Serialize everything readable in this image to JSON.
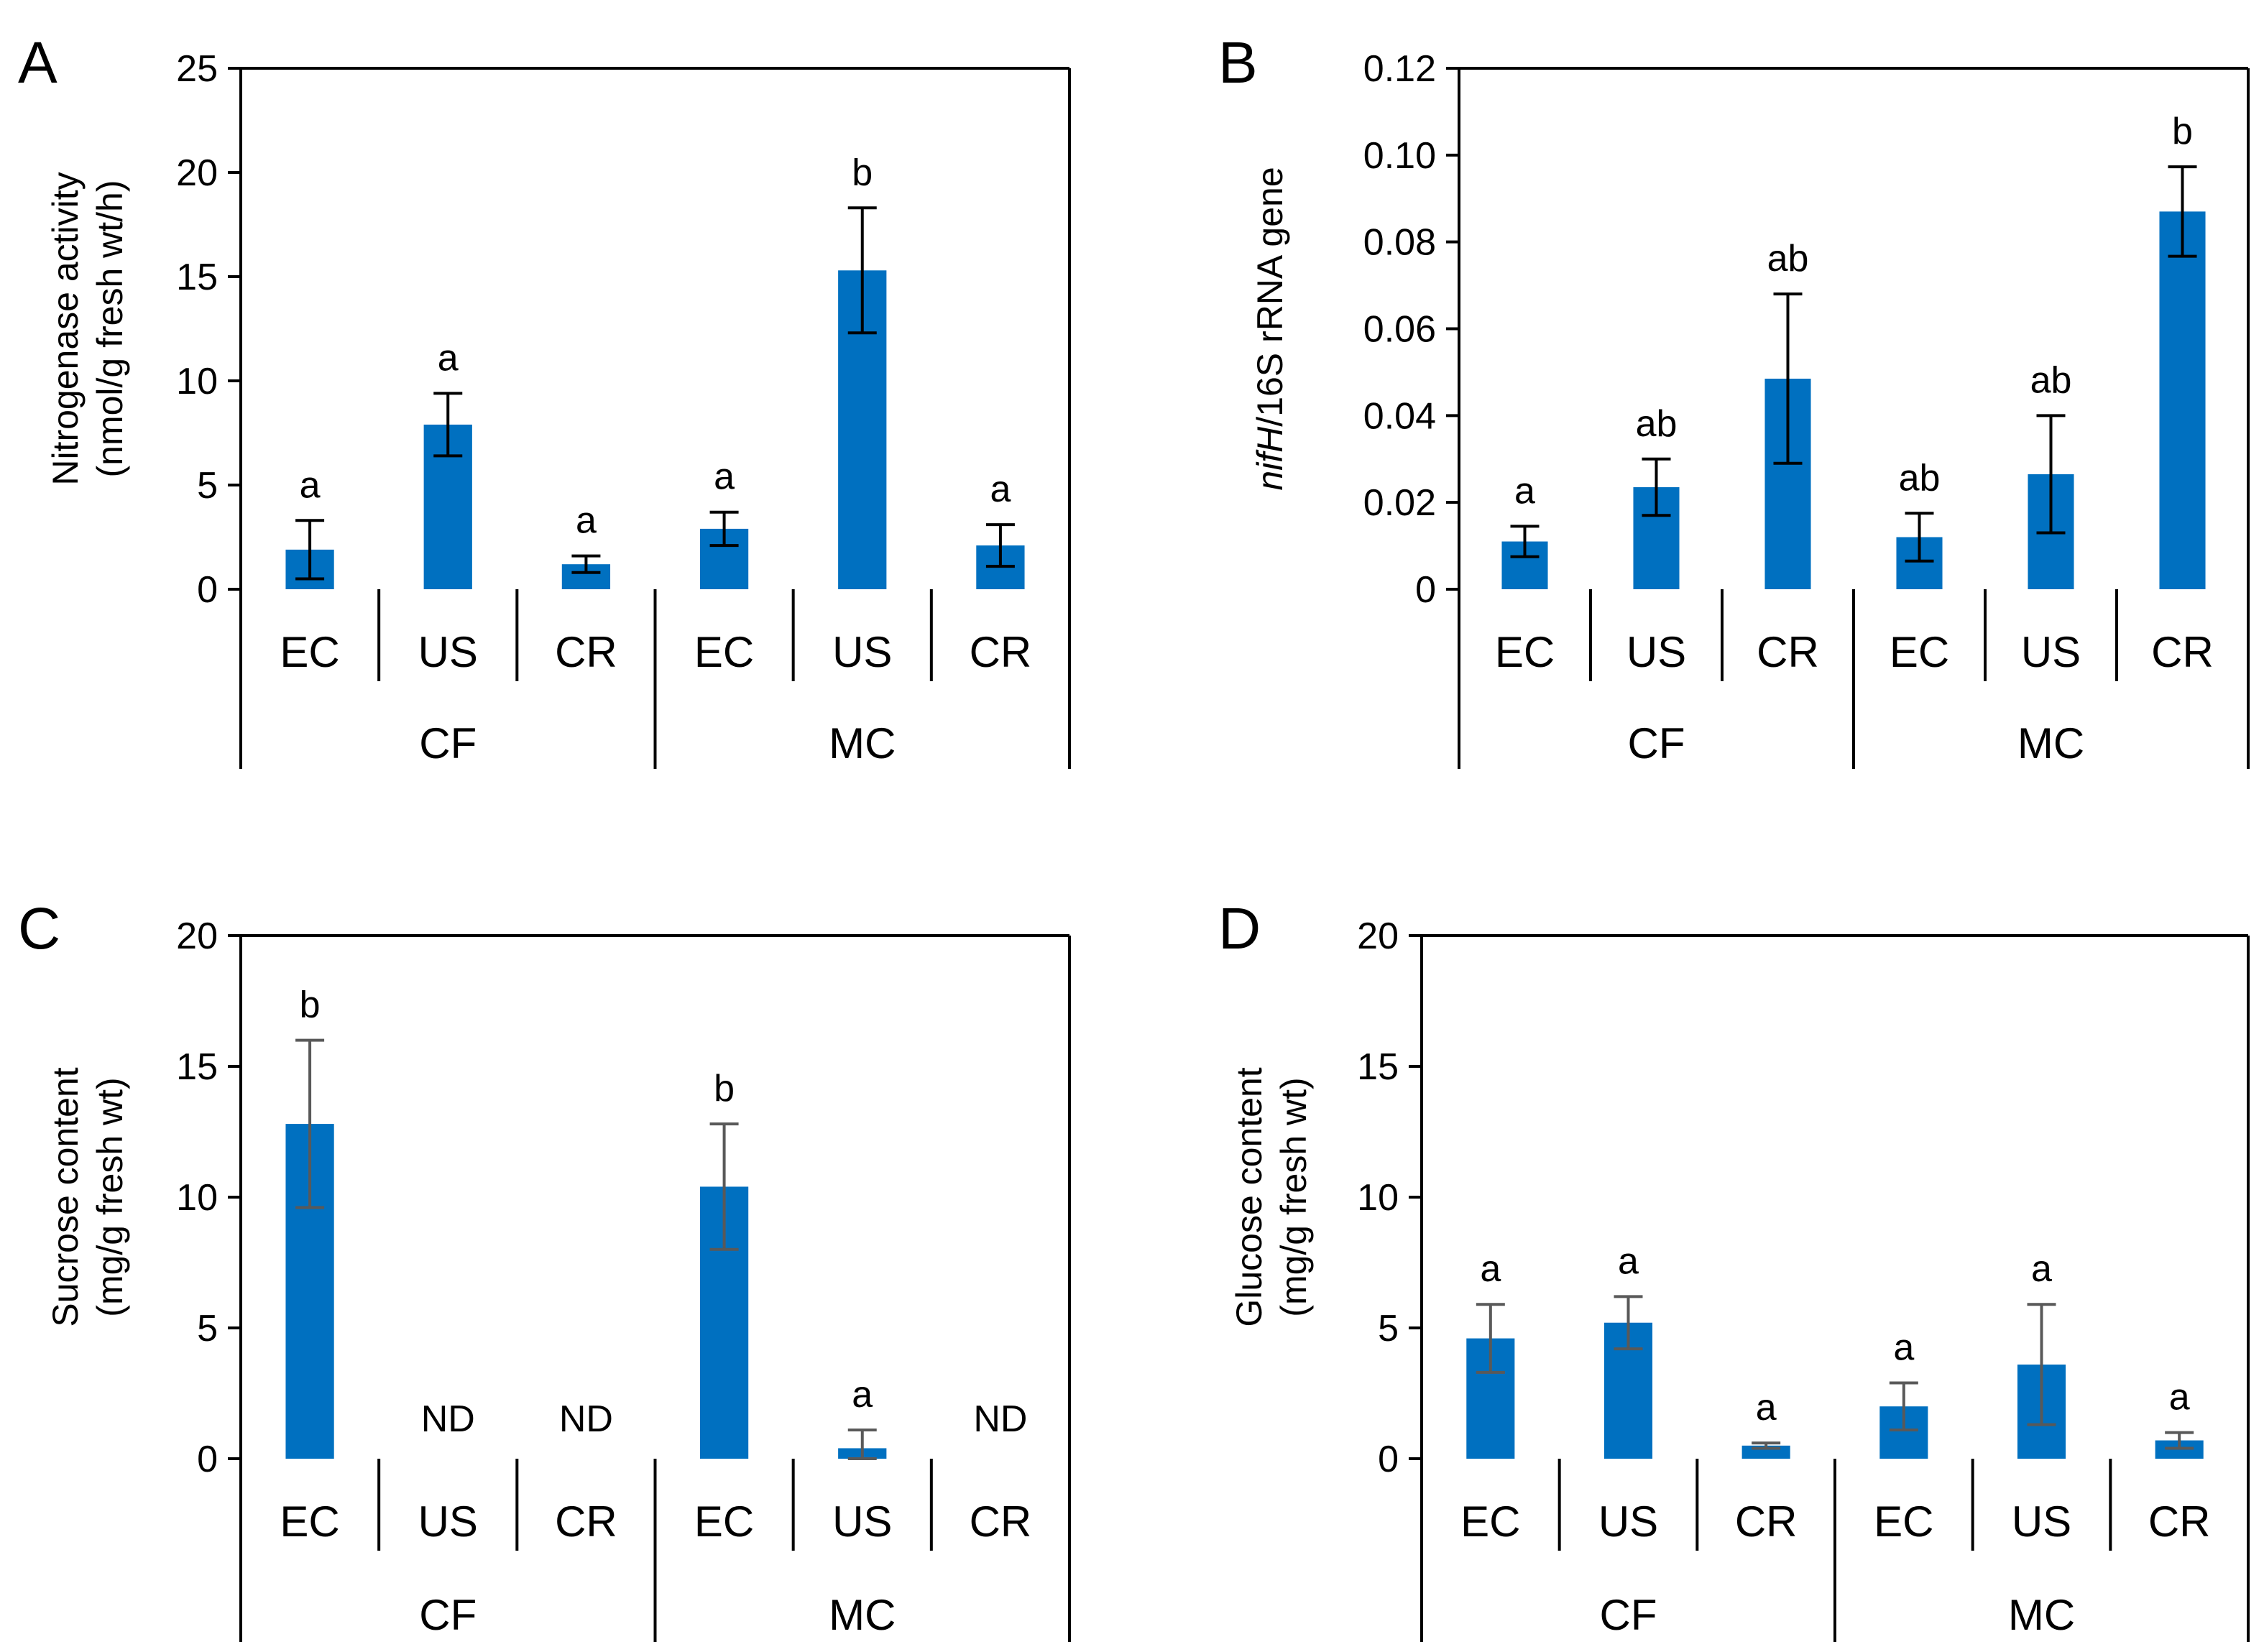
{
  "colors": {
    "bar": "#0070C0",
    "axis": "#000000",
    "error_dark": "#000000",
    "error_gray": "#595959"
  },
  "chart_data": [
    {
      "panel": "A",
      "type": "bar",
      "ylabel_lines": [
        "Nitrogenase activity",
        "(nmol/g fresh wt/h)"
      ],
      "ylim": [
        0,
        25
      ],
      "yticks": [
        0,
        5,
        10,
        15,
        20,
        25
      ],
      "ytick_labels": [
        "0",
        "5",
        "10",
        "15",
        "20",
        "25"
      ],
      "categories": [
        "EC",
        "US",
        "CR",
        "EC",
        "US",
        "CR"
      ],
      "groups": [
        {
          "label": "CF",
          "size": 3
        },
        {
          "label": "MC",
          "size": 3
        }
      ],
      "values": [
        1.9,
        7.9,
        1.2,
        2.9,
        15.3,
        2.1
      ],
      "errors": [
        1.4,
        1.5,
        0.4,
        0.8,
        3.0,
        1.0
      ],
      "significance": [
        "a",
        "a",
        "a",
        "a",
        "b",
        "a"
      ],
      "error_color": "error_dark"
    },
    {
      "panel": "B",
      "type": "bar",
      "ylabel_italic": "nifH",
      "ylabel_rest": "/16S rRNA gene",
      "ylim": [
        0,
        0.12
      ],
      "yticks": [
        0,
        0.02,
        0.04,
        0.06,
        0.08,
        0.1,
        0.12
      ],
      "ytick_labels": [
        "0",
        "0.02",
        "0.04",
        "0.06",
        "0.08",
        "0.10",
        "0.12"
      ],
      "categories": [
        "EC",
        "US",
        "CR",
        "EC",
        "US",
        "CR"
      ],
      "groups": [
        {
          "label": "CF",
          "size": 3
        },
        {
          "label": "MC",
          "size": 3
        }
      ],
      "values": [
        0.011,
        0.0235,
        0.0485,
        0.012,
        0.0265,
        0.087
      ],
      "errors": [
        0.0035,
        0.0065,
        0.0195,
        0.0055,
        0.0135,
        0.0103
      ],
      "significance": [
        "a",
        "ab",
        "ab",
        "ab",
        "ab",
        "b"
      ],
      "error_color": "error_dark"
    },
    {
      "panel": "C",
      "type": "bar",
      "ylabel_lines": [
        "Sucrose content",
        "(mg/g fresh wt)"
      ],
      "ylim": [
        0,
        20
      ],
      "yticks": [
        0,
        5,
        10,
        15,
        20
      ],
      "ytick_labels": [
        "0",
        "5",
        "10",
        "15",
        "20"
      ],
      "categories": [
        "EC",
        "US",
        "CR",
        "EC",
        "US",
        "CR"
      ],
      "groups": [
        {
          "label": "CF",
          "size": 3
        },
        {
          "label": "MC",
          "size": 3
        }
      ],
      "values": [
        12.8,
        null,
        null,
        10.4,
        0.4,
        null
      ],
      "errors": [
        3.2,
        null,
        null,
        2.4,
        0.7,
        null
      ],
      "significance": [
        "b",
        "ND",
        "ND",
        "b",
        "a",
        "ND"
      ],
      "error_color": "error_gray"
    },
    {
      "panel": "D",
      "type": "bar",
      "ylabel_lines": [
        "Glucose content",
        "(mg/g fresh wt)"
      ],
      "ylim": [
        0,
        20
      ],
      "yticks": [
        0,
        5,
        10,
        15,
        20
      ],
      "ytick_labels": [
        "0",
        "5",
        "10",
        "15",
        "20"
      ],
      "categories": [
        "EC",
        "US",
        "CR",
        "EC",
        "US",
        "CR"
      ],
      "groups": [
        {
          "label": "CF",
          "size": 3
        },
        {
          "label": "MC",
          "size": 3
        }
      ],
      "values": [
        4.6,
        5.2,
        0.5,
        2.0,
        3.6,
        0.7
      ],
      "errors": [
        1.3,
        1.0,
        0.1,
        0.9,
        2.3,
        0.3
      ],
      "significance": [
        "a",
        "a",
        "a",
        "a",
        "a",
        "a"
      ],
      "error_color": "error_gray"
    }
  ]
}
